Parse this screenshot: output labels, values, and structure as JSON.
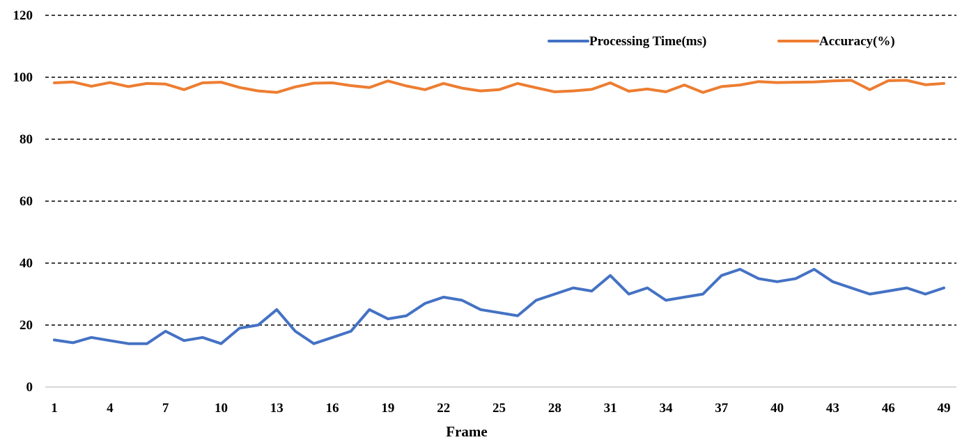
{
  "chart_data": {
    "type": "line",
    "title": "",
    "xlabel": "Frame",
    "ylabel": "",
    "ylim": [
      0,
      120
    ],
    "yticks": [
      0,
      20,
      40,
      60,
      80,
      100,
      120
    ],
    "xlim": [
      1,
      49
    ],
    "xticks": [
      1,
      4,
      7,
      10,
      13,
      16,
      19,
      22,
      25,
      28,
      31,
      34,
      37,
      40,
      43,
      46,
      49
    ],
    "grid": "horizontal dashed",
    "legend_position": "top-right",
    "x": [
      1,
      2,
      3,
      4,
      5,
      6,
      7,
      8,
      9,
      10,
      11,
      12,
      13,
      14,
      15,
      16,
      17,
      18,
      19,
      20,
      21,
      22,
      23,
      24,
      25,
      26,
      27,
      28,
      29,
      30,
      31,
      32,
      33,
      34,
      35,
      36,
      37,
      38,
      39,
      40,
      41,
      42,
      43,
      44,
      45,
      46,
      47,
      48,
      49
    ],
    "series": [
      {
        "name": "Processing Time(ms)",
        "color": "#4472C4",
        "values": [
          15.2,
          14.3,
          16,
          15,
          14,
          14,
          18,
          15,
          16,
          14,
          19,
          20,
          25,
          18,
          14,
          16,
          18,
          25,
          22,
          23,
          27,
          29,
          28,
          25,
          24,
          23,
          28,
          30,
          32,
          31,
          36,
          30,
          32,
          28,
          29,
          30,
          36,
          38,
          35,
          34,
          35,
          38,
          34,
          32,
          30,
          31,
          32,
          30,
          32
        ]
      },
      {
        "name": "Accuracy(%)",
        "color": "#ED7D31",
        "values": [
          98.2,
          98.5,
          97.1,
          98.3,
          97.0,
          98.0,
          97.8,
          96.0,
          98.2,
          98.4,
          96.7,
          95.6,
          95.1,
          96.9,
          98.1,
          98.2,
          97.3,
          96.7,
          98.8,
          97.2,
          96.0,
          98.0,
          96.5,
          95.6,
          96.0,
          98.0,
          96.6,
          95.3,
          95.6,
          96.1,
          98.2,
          95.5,
          96.2,
          95.3,
          97.5,
          95.1,
          97.0,
          97.5,
          98.6,
          98.3,
          98.4,
          98.5,
          98.8,
          99.0,
          96.0,
          98.9,
          99.0,
          97.6,
          98.0
        ]
      }
    ]
  }
}
